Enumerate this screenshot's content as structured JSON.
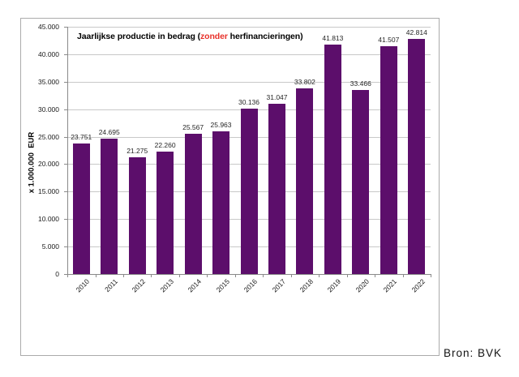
{
  "window": {
    "background": "#ffffff"
  },
  "chart": {
    "title": {
      "prefix": "Jaarlijkse productie in bedrag (",
      "highlight": "zonder",
      "suffix": " herfinancieringen)",
      "highlight_color": "#e8312a",
      "text_color": "#000000"
    },
    "y_axis_title": "x 1.000.000  EUR",
    "source_label": "Bron: BVK",
    "colors": {
      "bar": "#5c0e6b",
      "gridline": "#c8c8c8",
      "axis": "#8a8a8a",
      "border": "#ababab",
      "tick_text": "#1a1a1a",
      "value_label_text": "#262626"
    }
  },
  "chart_data": {
    "type": "bar",
    "title": "Jaarlijkse productie in bedrag (zonder herfinancieringen)",
    "categories": [
      "2010",
      "2011",
      "2012",
      "2013",
      "2014",
      "2015",
      "2016",
      "2017",
      "2018",
      "2019",
      "2020",
      "2021",
      "2022"
    ],
    "values": [
      23751,
      24695,
      21275,
      22260,
      25567,
      25963,
      30136,
      31047,
      33802,
      41813,
      33466,
      41507,
      42814
    ],
    "value_labels": [
      "23.751",
      "24.695",
      "21.275",
      "22.260",
      "25.567",
      "25.963",
      "30.136",
      "31.047",
      "33.802",
      "41.813",
      "33.466",
      "41.507",
      "42.814"
    ],
    "xlabel": "",
    "ylabel": "x 1.000.000 EUR",
    "ylim": [
      0,
      45000
    ],
    "ytick_interval": 5000,
    "ytick_labels": [
      "0",
      "5.000",
      "10.000",
      "15.000",
      "20.000",
      "25.000",
      "30.000",
      "35.000",
      "40.000",
      "45.000"
    ],
    "grid": true,
    "legend": false,
    "bar_color": "#5c0e6b",
    "source": "Bron: BVK"
  }
}
